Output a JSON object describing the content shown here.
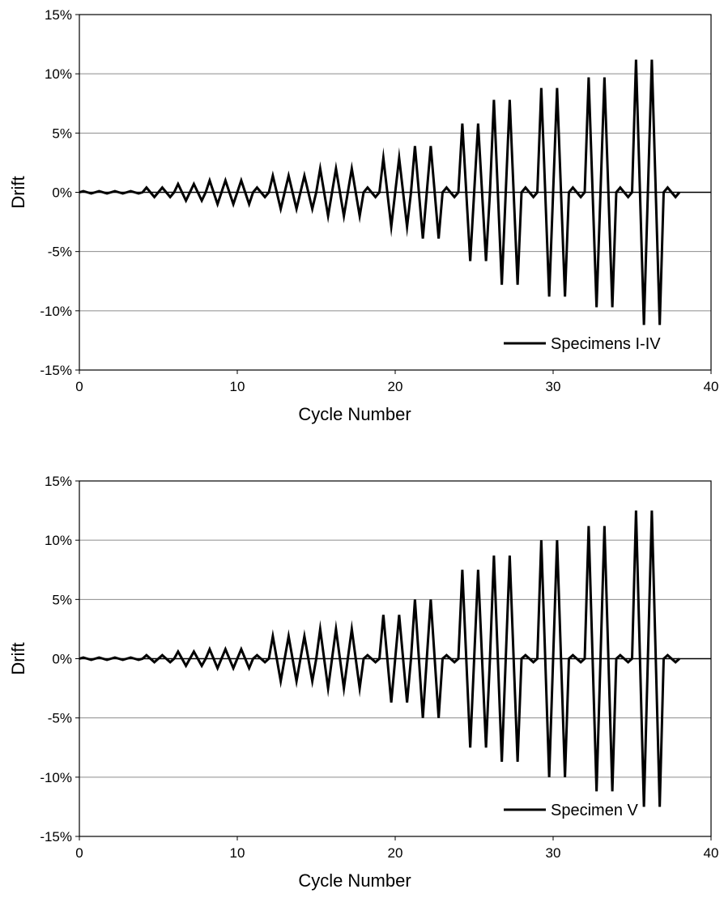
{
  "chart_data": [
    {
      "type": "line",
      "xlabel": "Cycle Number",
      "ylabel": "Drift",
      "xlim": [
        0,
        40
      ],
      "ylim": [
        -15,
        15
      ],
      "xticks": [
        0,
        10,
        20,
        30,
        40
      ],
      "yticks": [
        15,
        10,
        5,
        0,
        -5,
        -10,
        -15
      ],
      "ytick_labels": [
        "15%",
        "10%",
        "5%",
        "0%",
        "-5%",
        "-10%",
        "-15%"
      ],
      "grid": "horizontal",
      "legend_position": "bottom-right",
      "line_color": "#000000",
      "series": [
        {
          "name": "Specimens I-IV",
          "amplitudes": [
            0.1,
            0.1,
            0.1,
            0.1,
            0.4,
            0.4,
            0.7,
            0.7,
            1.0,
            1.0,
            1.0,
            0.4,
            1.4,
            1.4,
            1.4,
            2.0,
            2.0,
            2.0,
            0.4,
            2.9,
            2.9,
            3.9,
            3.9,
            0.4,
            5.8,
            5.8,
            7.8,
            7.8,
            0.4,
            8.8,
            8.8,
            0.4,
            9.7,
            9.7,
            0.4,
            11.2,
            11.2,
            0.4
          ]
        }
      ]
    },
    {
      "type": "line",
      "xlabel": "Cycle Number",
      "ylabel": "Drift",
      "xlim": [
        0,
        40
      ],
      "ylim": [
        -15,
        15
      ],
      "xticks": [
        0,
        10,
        20,
        30,
        40
      ],
      "yticks": [
        15,
        10,
        5,
        0,
        -5,
        -10,
        -15
      ],
      "ytick_labels": [
        "15%",
        "10%",
        "5%",
        "0%",
        "-5%",
        "-10%",
        "-15%"
      ],
      "grid": "horizontal",
      "legend_position": "bottom-right",
      "line_color": "#000000",
      "series": [
        {
          "name": "Specimen V",
          "amplitudes": [
            0.1,
            0.1,
            0.1,
            0.1,
            0.3,
            0.3,
            0.6,
            0.6,
            0.8,
            0.8,
            0.8,
            0.3,
            1.9,
            1.9,
            1.9,
            2.5,
            2.5,
            2.5,
            0.3,
            3.7,
            3.7,
            5.0,
            5.0,
            0.3,
            7.5,
            7.5,
            8.7,
            8.7,
            0.3,
            10.0,
            10.0,
            0.3,
            11.2,
            11.2,
            0.3,
            12.5,
            12.5,
            0.3
          ]
        }
      ]
    }
  ]
}
